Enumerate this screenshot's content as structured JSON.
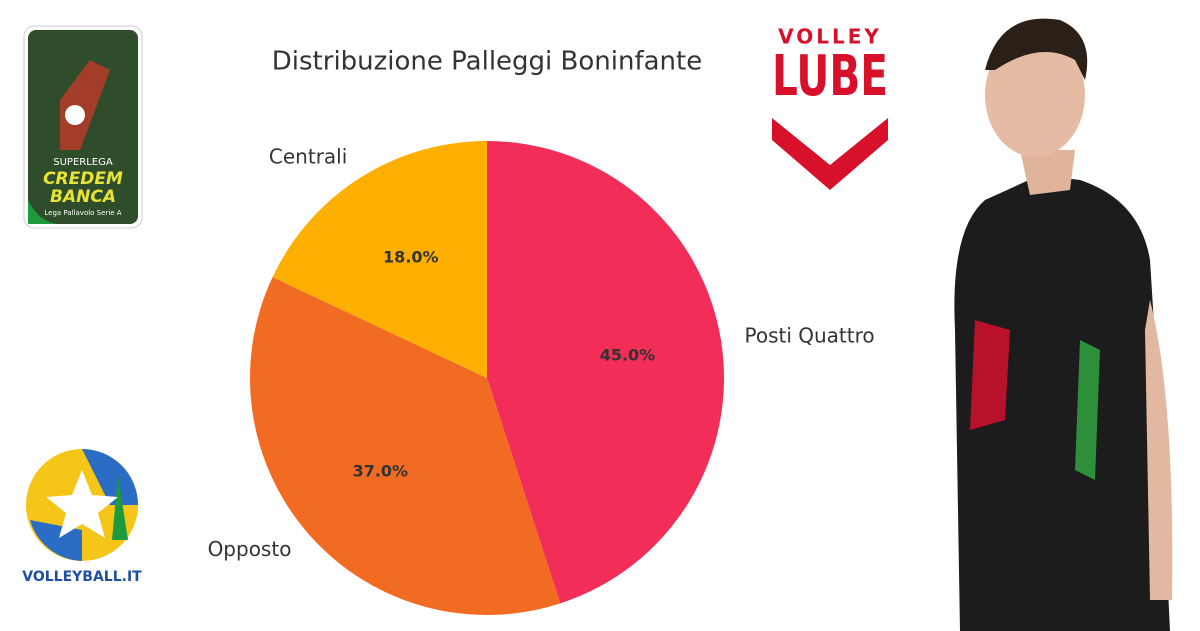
{
  "chart_data": {
    "type": "pie",
    "title": "Distribuzione Palleggi Boninfante",
    "categories": [
      "Posti Quattro",
      "Opposto",
      "Centrali"
    ],
    "values": [
      45,
      37,
      18
    ],
    "value_labels": [
      "45.0%",
      "37.0%",
      "18.0%"
    ],
    "colors": [
      "#f22d57",
      "#f26b22",
      "#fdb002"
    ]
  },
  "logos": {
    "superlega_top": "SUPERLEGA",
    "superlega_mid1": "CREDEM",
    "superlega_mid2": "BANCA",
    "superlega_bottom": "Lega Pallavolo Serie A",
    "lube_top": "VOLLEY",
    "lube_main": "LUBE",
    "volleyball": "VOLLEYBALL.IT"
  }
}
